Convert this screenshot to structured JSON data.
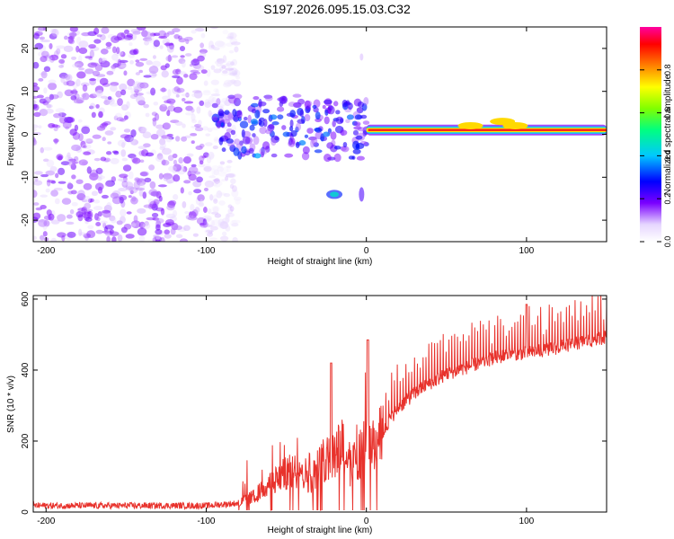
{
  "page_title": "S197.2026.095.15.03.C32",
  "colors": {
    "line": "#e8322c",
    "frame": "#000000",
    "dots": "#6a10e0"
  },
  "chart_data": [
    {
      "type": "heatmap",
      "title": "S197.2026.095.15.03.C32",
      "xlabel": "Height of straight line (km)",
      "ylabel": "Frequency (Hz)",
      "xlim": [
        -208,
        150
      ],
      "ylim": [
        -25,
        25
      ],
      "xticks": [
        -200,
        -100,
        0,
        100
      ],
      "xtick_labels": [
        "-200",
        "-100",
        "0",
        "100"
      ],
      "yticks": [
        -20,
        -10,
        0,
        10,
        20
      ],
      "ytick_labels": [
        "-20",
        "-10",
        "0",
        "10",
        "20"
      ],
      "colorbar": {
        "label": "Normalized spectral amplitude",
        "range": [
          0,
          1
        ],
        "ticks": [
          0.0,
          0.2,
          0.4,
          0.6,
          0.8
        ],
        "tick_labels": [
          "0.0",
          "0.2",
          "0.4",
          "0.6",
          "0.8"
        ]
      },
      "features": {
        "noise_region_x": [
          -208,
          -80
        ],
        "steady_tone_freq_hz": 1,
        "steady_tone_x": [
          0,
          150
        ],
        "isolated_blob": {
          "x": -20,
          "freq_hz": -14
        }
      }
    },
    {
      "type": "line",
      "xlabel": "Height of straight line (km)",
      "ylabel": "SNR (10 * v/v)",
      "xlim": [
        -208,
        150
      ],
      "ylim": [
        0,
        610
      ],
      "xticks": [
        -200,
        -100,
        0,
        100
      ],
      "xtick_labels": [
        "-200",
        "-100",
        "0",
        "100"
      ],
      "yticks": [
        0,
        200,
        400,
        600
      ],
      "ytick_labels": [
        "0",
        "200",
        "400",
        "600"
      ],
      "series": [
        {
          "name": "SNR",
          "x": [
            -208,
            -150,
            -100,
            -80,
            -70,
            -60,
            -50,
            -40,
            -35,
            -30,
            -25,
            -20,
            -15,
            -10,
            -5,
            0,
            5,
            10,
            15,
            20,
            30,
            40,
            50,
            60,
            70,
            80,
            90,
            100,
            110,
            120,
            130,
            140,
            150
          ],
          "values": [
            18,
            18,
            18,
            25,
            45,
            80,
            110,
            120,
            90,
            130,
            150,
            170,
            200,
            120,
            160,
            200,
            180,
            215,
            260,
            290,
            330,
            360,
            385,
            400,
            415,
            430,
            440,
            445,
            450,
            460,
            470,
            480,
            490
          ]
        }
      ],
      "spikes": [
        {
          "x": -22,
          "value": 420
        },
        {
          "x": 1,
          "value": 485
        },
        {
          "x": 100,
          "value": 585
        }
      ]
    }
  ]
}
